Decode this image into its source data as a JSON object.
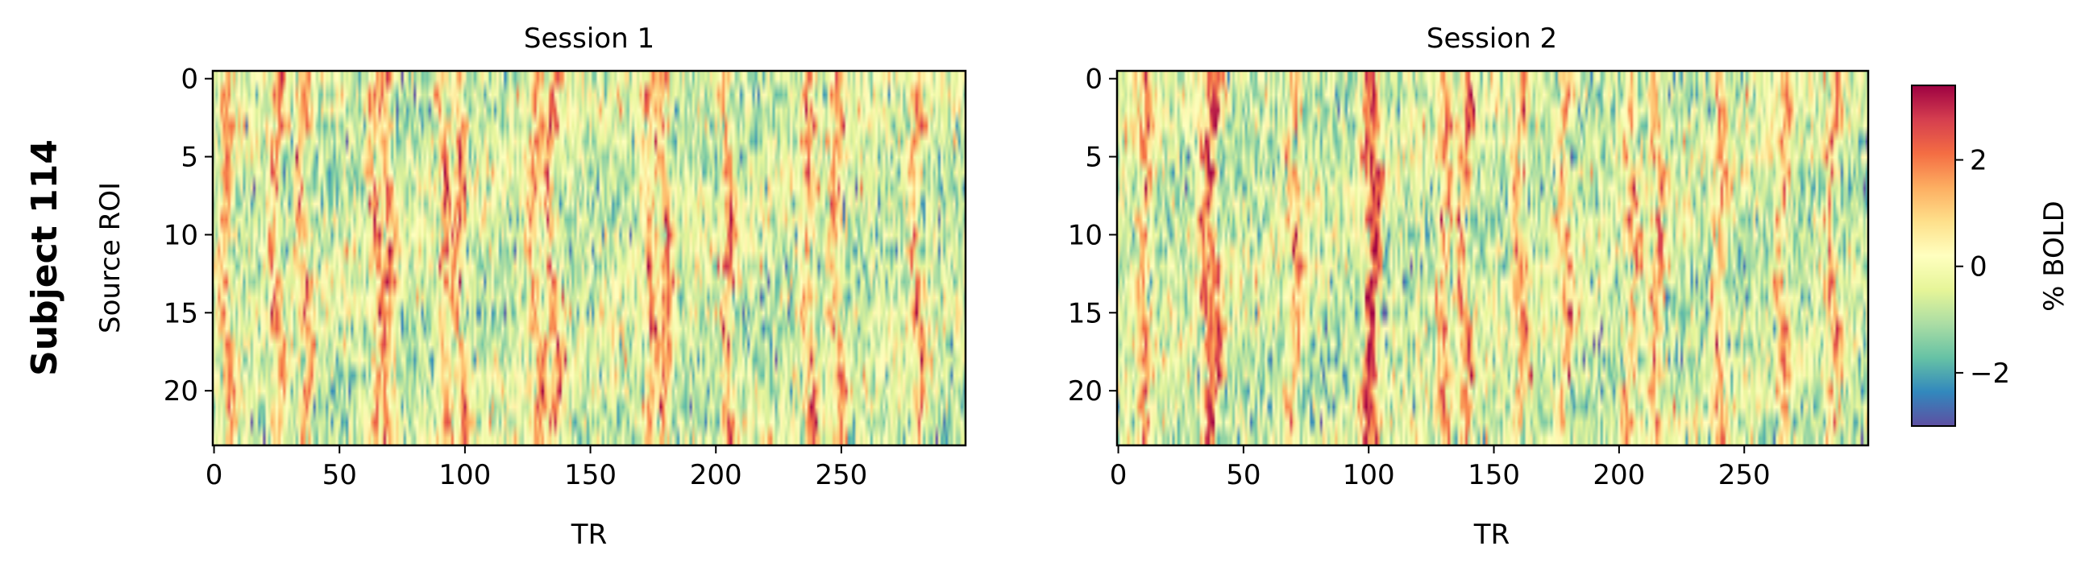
{
  "figure": {
    "row_label": "Subject 114"
  },
  "chart_data": [
    {
      "type": "heatmap",
      "title": "Session 1",
      "xlabel": "TR",
      "ylabel": "Source ROI",
      "n_rows": 24,
      "n_cols": 300,
      "xlim": [
        0,
        299
      ],
      "ylim": [
        23.5,
        -0.5
      ],
      "xticks": [
        0,
        50,
        100,
        150,
        200,
        250
      ],
      "yticks": [
        0,
        5,
        10,
        15,
        20
      ],
      "colormap": "Spectral_r",
      "event_trs": [
        5,
        25,
        36,
        65,
        70,
        92,
        98,
        128,
        135,
        174,
        180,
        205,
        237,
        248,
        280
      ],
      "value_range": [
        -3,
        3.4
      ]
    },
    {
      "type": "heatmap",
      "title": "Session 2",
      "xlabel": "TR",
      "ylabel": "",
      "n_rows": 24,
      "n_cols": 300,
      "xlim": [
        0,
        299
      ],
      "ylim": [
        23.5,
        -0.5
      ],
      "xticks": [
        0,
        50,
        100,
        150,
        200,
        250
      ],
      "yticks": [
        0,
        5,
        10,
        15,
        20
      ],
      "colormap": "Spectral_r",
      "event_trs": [
        10,
        35,
        38,
        70,
        100,
        102,
        130,
        138,
        160,
        178,
        205,
        215,
        240,
        265,
        285
      ],
      "value_range": [
        -3,
        3.4
      ]
    }
  ],
  "colorbar": {
    "label": "% BOLD",
    "range": [
      -3.0,
      3.4
    ],
    "ticks": [
      -2,
      0,
      2
    ],
    "tick_labels": [
      "−2",
      "0",
      "2"
    ],
    "colors": [
      "#5e4fa2",
      "#3288bd",
      "#66c2a5",
      "#abdda4",
      "#e6f598",
      "#ffffbf",
      "#fee08b",
      "#fdae61",
      "#f46d43",
      "#d53e4f",
      "#9e0142"
    ]
  }
}
